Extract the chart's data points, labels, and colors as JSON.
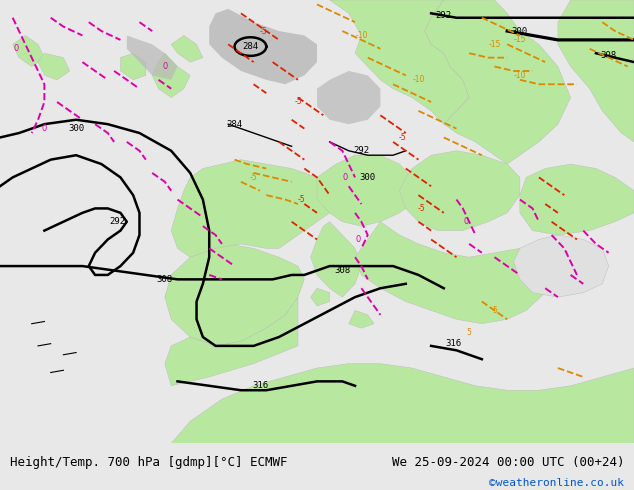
{
  "title_left": "Height/Temp. 700 hPa [gdmp][°C] ECMWF",
  "title_right": "We 25-09-2024 00:00 UTC (00+24)",
  "watermark": "©weatheronline.co.uk",
  "bg_color": "#e8e8e8",
  "map_bg": "#d8d8d8",
  "land_light": "#c8c8c8",
  "green_color": "#b8e8a0",
  "gray_color": "#b8b8b8",
  "ocean_color": "#e0e0e0",
  "black_contour_color": "#000000",
  "red_contour_color": "#dd2200",
  "orange_contour_color": "#dd8800",
  "magenta_contour_color": "#dd00aa",
  "bottom_bar_color": "#d0d0d0",
  "figsize": [
    6.34,
    4.9
  ],
  "dpi": 100,
  "font_color_left": "#000000",
  "font_color_right": "#000000",
  "font_color_watermark": "#0055cc",
  "font_size_bottom": 9,
  "font_size_watermark": 8
}
